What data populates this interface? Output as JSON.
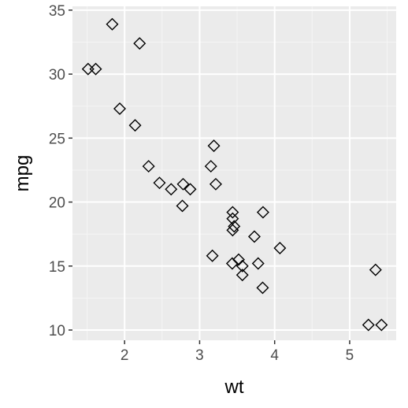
{
  "chart_data": {
    "type": "scatter",
    "xlabel": "wt",
    "ylabel": "mpg",
    "xlim": [
      1.305,
      5.62
    ],
    "ylim": [
      9.2,
      35.3
    ],
    "x_ticks": [
      2,
      3,
      4,
      5
    ],
    "y_ticks": [
      10,
      15,
      20,
      25,
      30,
      35
    ],
    "grid": true,
    "marker": "open-diamond",
    "colors": {
      "panel_background": "#ebebeb",
      "grid_major": "#ffffff",
      "grid_minor": "#f5f5f5",
      "tick_text": "#4d4d4d",
      "axis_title": "#000000",
      "marker_stroke": "#000000"
    },
    "points": [
      {
        "x": 2.62,
        "y": 21.0
      },
      {
        "x": 2.875,
        "y": 21.0
      },
      {
        "x": 2.32,
        "y": 22.8
      },
      {
        "x": 3.215,
        "y": 21.4
      },
      {
        "x": 3.44,
        "y": 18.7
      },
      {
        "x": 3.46,
        "y": 18.1
      },
      {
        "x": 3.57,
        "y": 14.3
      },
      {
        "x": 3.19,
        "y": 24.4
      },
      {
        "x": 3.15,
        "y": 22.8
      },
      {
        "x": 3.44,
        "y": 19.2
      },
      {
        "x": 3.44,
        "y": 17.8
      },
      {
        "x": 4.07,
        "y": 16.4
      },
      {
        "x": 3.73,
        "y": 17.3
      },
      {
        "x": 3.78,
        "y": 15.2
      },
      {
        "x": 5.25,
        "y": 10.4
      },
      {
        "x": 5.424,
        "y": 10.4
      },
      {
        "x": 5.345,
        "y": 14.7
      },
      {
        "x": 2.2,
        "y": 32.4
      },
      {
        "x": 1.615,
        "y": 30.4
      },
      {
        "x": 1.835,
        "y": 33.9
      },
      {
        "x": 2.465,
        "y": 21.5
      },
      {
        "x": 3.52,
        "y": 15.5
      },
      {
        "x": 3.435,
        "y": 15.2
      },
      {
        "x": 3.84,
        "y": 13.3
      },
      {
        "x": 3.845,
        "y": 19.2
      },
      {
        "x": 1.935,
        "y": 27.3
      },
      {
        "x": 2.14,
        "y": 26.0
      },
      {
        "x": 1.513,
        "y": 30.4
      },
      {
        "x": 3.17,
        "y": 15.8
      },
      {
        "x": 2.77,
        "y": 19.7
      },
      {
        "x": 3.57,
        "y": 15.0
      },
      {
        "x": 2.78,
        "y": 21.4
      }
    ]
  }
}
